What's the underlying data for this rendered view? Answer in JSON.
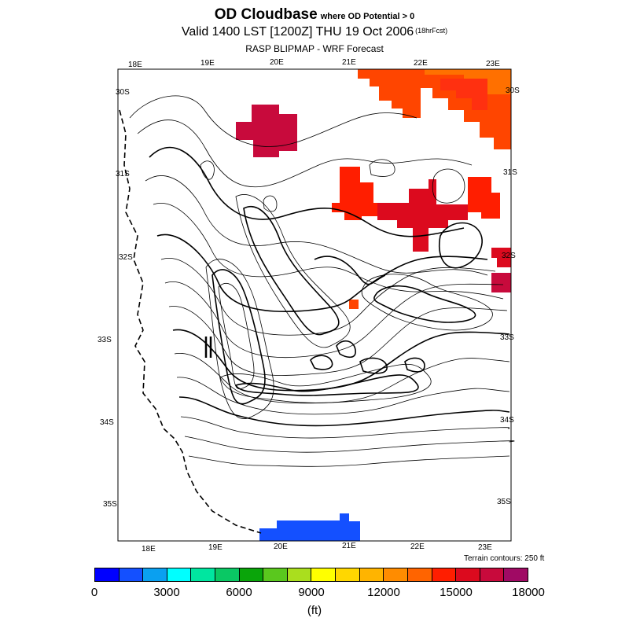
{
  "header": {
    "title": "OD Cloudbase",
    "title_suffix": "where OD Potential > 0",
    "valid": "Valid 1400 LST [1200Z] THU 19 Oct 2006",
    "valid_suffix": "(18hrFcst)",
    "source": "RASP BLIPMAP - WRF Forecast"
  },
  "map": {
    "top_lon_labels": [
      "18E",
      "19E",
      "20E",
      "21E",
      "22E",
      "23E"
    ],
    "bottom_lon_labels": [
      "18E",
      "19E",
      "20E",
      "21E",
      "22E",
      "23E"
    ],
    "left_lat_labels": [
      "30S",
      "31S",
      "32S",
      "33S",
      "34S",
      "35S"
    ],
    "right_lat_labels": [
      "30S",
      "31S",
      "32S",
      "33S",
      "34S",
      "35S"
    ],
    "terrain_note": "Terrain contours: 250 ft"
  },
  "colorbar": {
    "colors": [
      "#0000ff",
      "#1450ff",
      "#0aa0f0",
      "#00ffff",
      "#00e6a0",
      "#0ac864",
      "#0aa50a",
      "#5ac81e",
      "#aade1e",
      "#ffff00",
      "#ffd700",
      "#ffb400",
      "#ff8c00",
      "#ff6400",
      "#ff1e00",
      "#dc0a1e",
      "#c80a3c",
      "#a00a64"
    ],
    "ticks": [
      "0",
      "3000",
      "6000",
      "9000",
      "12000",
      "15000",
      "18000"
    ],
    "unit": "(ft)"
  }
}
